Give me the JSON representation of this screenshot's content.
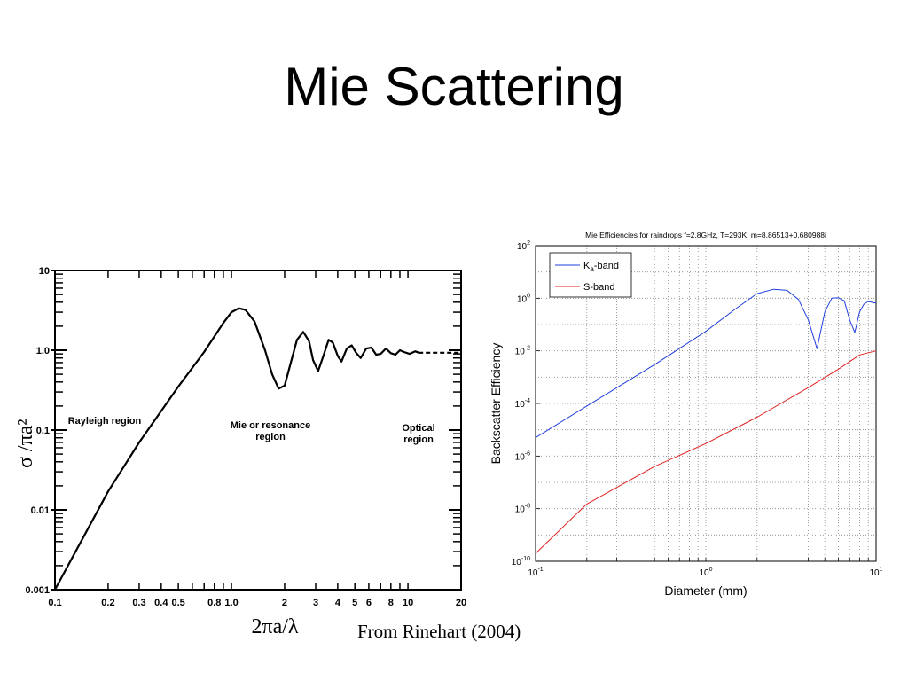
{
  "slide": {
    "title": "Mie Scattering",
    "left_ylabel": "σ /πa²",
    "left_xlabel": "2πa/λ",
    "source": "From Rinehart (2004)"
  },
  "chart_data": [
    {
      "type": "line",
      "xscale": "log",
      "yscale": "log",
      "xlim": [
        0.1,
        20
      ],
      "ylim": [
        0.001,
        10
      ],
      "xticks": [
        "0.1",
        "0.2",
        "0.3",
        "0.4",
        "0.5",
        "0.8",
        "1.0",
        "2",
        "3",
        "4",
        "5",
        "6",
        "8",
        "10",
        "20"
      ],
      "yticks": [
        "0.001",
        "0.01",
        "0.1",
        "1.0",
        "10"
      ],
      "annotations": [
        "Rayleigh region",
        "Mie or resonance region",
        "Optical region"
      ],
      "series": [
        {
          "style": "solid",
          "color": "#000000",
          "points": [
            [
              0.1,
              0.001
            ],
            [
              0.2,
              0.017
            ],
            [
              0.3,
              0.07
            ],
            [
              0.5,
              0.35
            ],
            [
              0.7,
              0.95
            ],
            [
              0.9,
              2.2
            ],
            [
              1.0,
              3.0
            ],
            [
              1.1,
              3.35
            ],
            [
              1.2,
              3.2
            ],
            [
              1.35,
              2.3
            ],
            [
              1.55,
              1.0
            ],
            [
              1.7,
              0.5
            ],
            [
              1.85,
              0.33
            ],
            [
              2.0,
              0.36
            ],
            [
              2.15,
              0.65
            ],
            [
              2.35,
              1.35
            ],
            [
              2.55,
              1.7
            ],
            [
              2.75,
              1.3
            ],
            [
              2.9,
              0.75
            ],
            [
              3.1,
              0.55
            ],
            [
              3.3,
              0.82
            ],
            [
              3.55,
              1.35
            ],
            [
              3.75,
              1.25
            ],
            [
              4.0,
              0.85
            ],
            [
              4.2,
              0.72
            ],
            [
              4.5,
              1.05
            ],
            [
              4.8,
              1.15
            ],
            [
              5.1,
              0.92
            ],
            [
              5.4,
              0.8
            ],
            [
              5.8,
              1.05
            ],
            [
              6.2,
              1.08
            ],
            [
              6.6,
              0.88
            ],
            [
              7.0,
              0.9
            ],
            [
              7.5,
              1.05
            ],
            [
              8.0,
              0.92
            ],
            [
              8.5,
              0.88
            ],
            [
              9.0,
              1.0
            ],
            [
              9.5,
              0.95
            ],
            [
              10.2,
              0.9
            ],
            [
              11.0,
              0.97
            ],
            [
              11.5,
              0.93
            ]
          ]
        },
        {
          "style": "dashed",
          "color": "#000000",
          "points": [
            [
              11.5,
              0.93
            ],
            [
              20,
              0.93
            ]
          ]
        }
      ]
    },
    {
      "type": "line",
      "title": "Mie Efficiencies for raindrops f=2.8GHz, T=293K, m=8.86513+0.680988i",
      "xlabel": "Diameter (mm)",
      "ylabel": "Backscatter Efficiency",
      "xscale": "log",
      "yscale": "log",
      "xlim": [
        0.1,
        10
      ],
      "ylim": [
        1e-10,
        100
      ],
      "xticks": [
        {
          "base": "10",
          "exp": "-1"
        },
        {
          "base": "10",
          "exp": "0"
        },
        {
          "base": "10",
          "exp": "1"
        }
      ],
      "yticks": [
        {
          "base": "10",
          "exp": "-10"
        },
        {
          "base": "10",
          "exp": "-8"
        },
        {
          "base": "10",
          "exp": "-6"
        },
        {
          "base": "10",
          "exp": "-4"
        },
        {
          "base": "10",
          "exp": "-2"
        },
        {
          "base": "10",
          "exp": "0"
        },
        {
          "base": "10",
          "exp": "2"
        }
      ],
      "grid": true,
      "legend_position": "top-left",
      "series": [
        {
          "name": "Ka-band",
          "legend_main": "K",
          "legend_sub": "a",
          "legend_rest": "-band",
          "color": "#1f3fdf",
          "points": [
            [
              0.1,
              5e-06
            ],
            [
              0.2,
              8e-05
            ],
            [
              0.5,
              0.003
            ],
            [
              1.0,
              0.055
            ],
            [
              1.5,
              0.4
            ],
            [
              2.0,
              1.5
            ],
            [
              2.5,
              2.2
            ],
            [
              3.0,
              2.0
            ],
            [
              3.5,
              0.9
            ],
            [
              4.0,
              0.15
            ],
            [
              4.5,
              0.012
            ],
            [
              5.0,
              0.3
            ],
            [
              5.5,
              1.0
            ],
            [
              6.0,
              1.05
            ],
            [
              6.5,
              0.8
            ],
            [
              7.0,
              0.15
            ],
            [
              7.5,
              0.05
            ],
            [
              8.0,
              0.3
            ],
            [
              8.5,
              0.6
            ],
            [
              9.0,
              0.75
            ],
            [
              10.0,
              0.65
            ]
          ]
        },
        {
          "name": "S-band",
          "color": "#e02020",
          "points": [
            [
              0.1,
              2e-10
            ],
            [
              0.2,
              1.5e-08
            ],
            [
              0.5,
              4e-07
            ],
            [
              1.0,
              3e-06
            ],
            [
              2.0,
              3e-05
            ],
            [
              4.0,
              0.0004
            ],
            [
              6.0,
              0.002
            ],
            [
              8.0,
              0.007
            ],
            [
              10.0,
              0.01
            ]
          ]
        }
      ]
    }
  ]
}
